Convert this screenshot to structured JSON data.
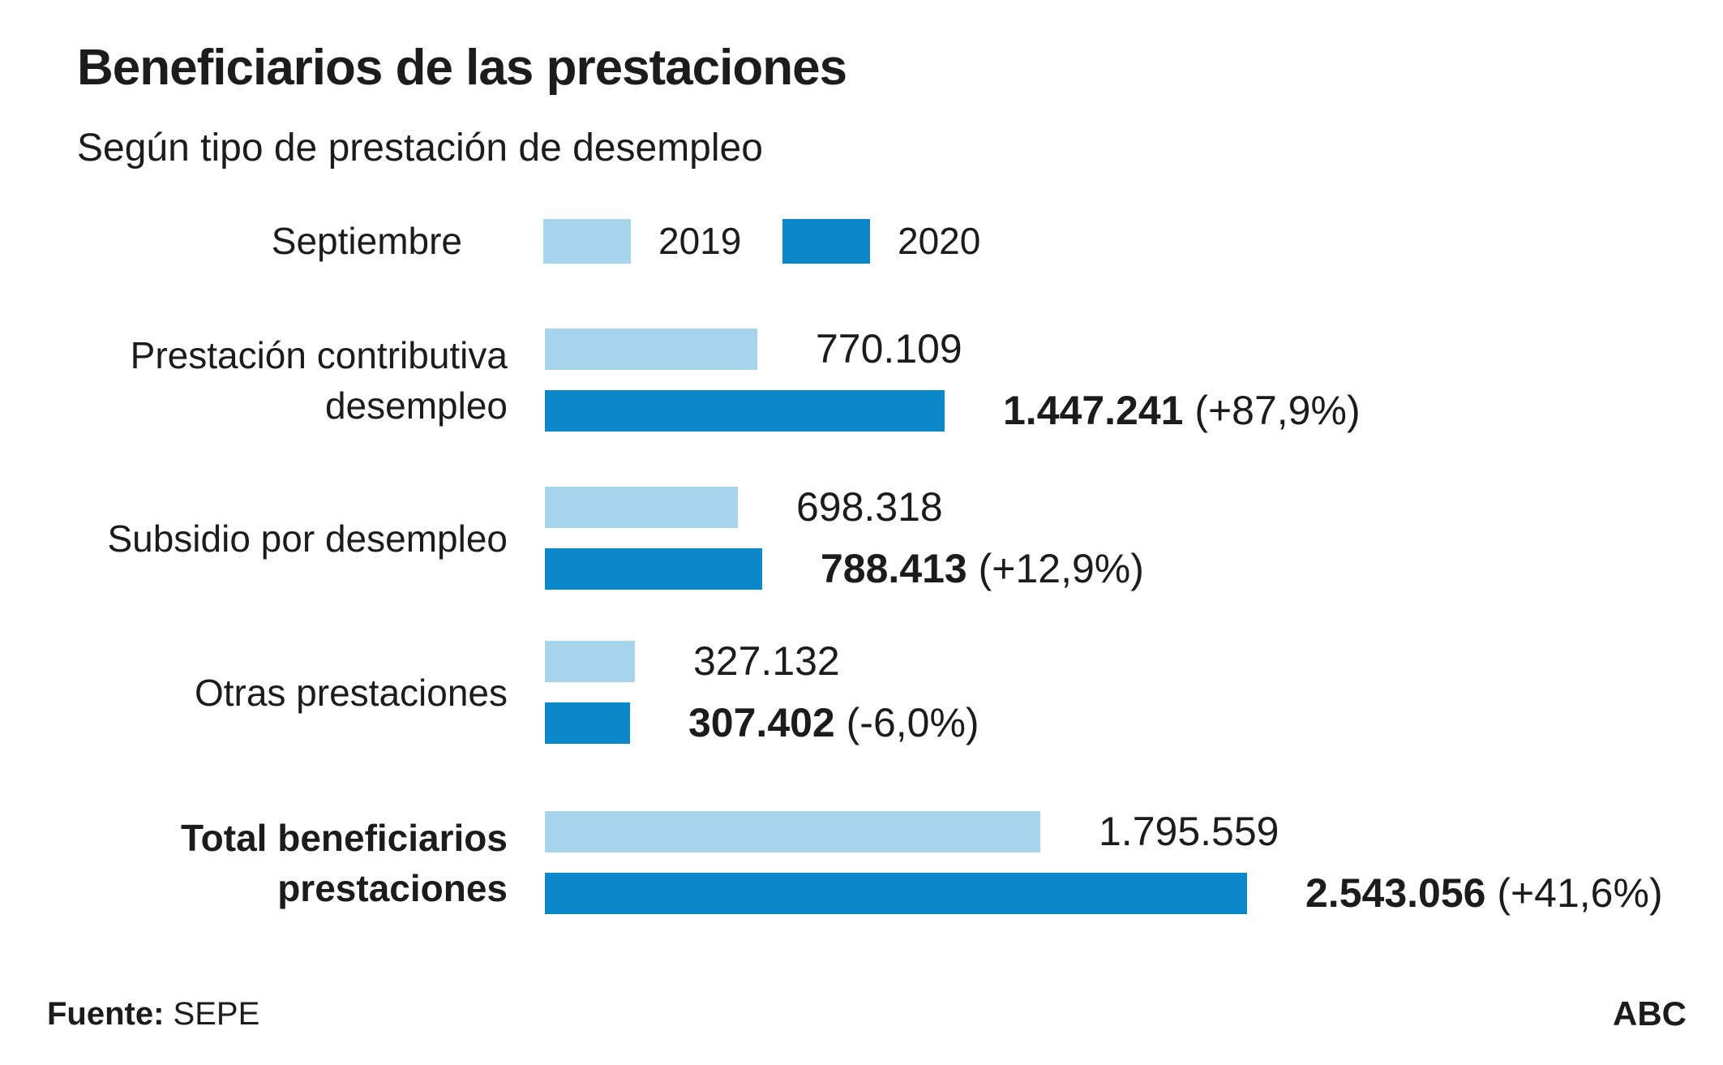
{
  "header": {
    "title": "Beneficiarios de las prestaciones",
    "subtitle": "Según tipo de prestación de desempleo"
  },
  "legend": {
    "label": "Septiembre",
    "series": [
      {
        "name": "2019",
        "color": "#a6d4ec"
      },
      {
        "name": "2020",
        "color": "#0a88ca"
      }
    ]
  },
  "chart_data": {
    "type": "bar",
    "orientation": "horizontal",
    "title": "Beneficiarios de las prestaciones",
    "subtitle": "Según tipo de prestación de desempleo",
    "period": "Septiembre",
    "categories": [
      "Prestación contributiva desempleo",
      "Subsidio por desempleo",
      "Otras prestaciones",
      "Total beneficiarios prestaciones"
    ],
    "series": [
      {
        "name": "2019",
        "color": "#a6d4ec",
        "values": [
          770109,
          698318,
          327132,
          1795559
        ]
      },
      {
        "name": "2020",
        "color": "#0a88ca",
        "values": [
          1447241,
          788413,
          307402,
          2543056
        ]
      }
    ],
    "change_pct_2020_vs_2019": [
      "+87,9%",
      "+12,9%",
      "-6,0%",
      "+41,6%"
    ],
    "xlim": [
      0,
      2543056
    ],
    "legend_position": "top",
    "grid": false
  },
  "rows": [
    {
      "label_lines": [
        "Prestación contributiva",
        "desempleo"
      ],
      "bold_label": false,
      "bar_2019": {
        "value": 770109,
        "label": "770.109"
      },
      "bar_2020": {
        "value": 1447241,
        "label": "1.447.241",
        "pct": "(+87,9%)"
      }
    },
    {
      "label_lines": [
        "Subsidio por desempleo"
      ],
      "bold_label": false,
      "bar_2019": {
        "value": 698318,
        "label": "698.318"
      },
      "bar_2020": {
        "value": 788413,
        "label": "788.413",
        "pct": "(+12,9%)"
      }
    },
    {
      "label_lines": [
        "Otras prestaciones"
      ],
      "bold_label": false,
      "bar_2019": {
        "value": 327132,
        "label": "327.132"
      },
      "bar_2020": {
        "value": 307402,
        "label": "307.402",
        "pct": "(-6,0%)"
      }
    },
    {
      "label_lines": [
        "Total beneficiarios",
        "prestaciones"
      ],
      "bold_label": true,
      "bar_2019": {
        "value": 1795559,
        "label": "1.795.559"
      },
      "bar_2020": {
        "value": 2543056,
        "label": "2.543.056",
        "pct": "(+41,6%)"
      }
    }
  ],
  "footer": {
    "source_label": "Fuente:",
    "source_value": " SEPE",
    "credit": "ABC"
  }
}
